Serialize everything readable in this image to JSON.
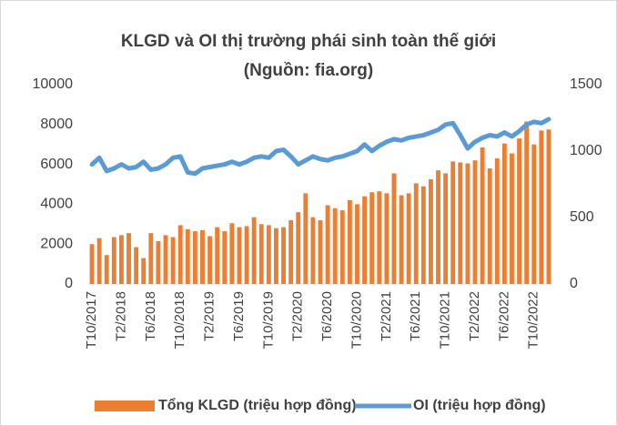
{
  "chart_data": {
    "type": "bar-line",
    "title": "KLGD và OI thị trường phái sinh toàn thế giới",
    "subtitle": "(Nguồn: fia.org)",
    "categories": [
      "T10/2017",
      null,
      null,
      null,
      "T2/2018",
      null,
      null,
      null,
      "T6/2018",
      null,
      null,
      null,
      "T10/2018",
      null,
      null,
      null,
      "T2/2019",
      null,
      null,
      null,
      "T6/2019",
      null,
      null,
      null,
      "T10/2019",
      null,
      null,
      null,
      "T2/2020",
      null,
      null,
      null,
      "T6/2020",
      null,
      null,
      null,
      "T10/2020",
      null,
      null,
      null,
      "T2/2021",
      null,
      null,
      null,
      "T6/2021",
      null,
      null,
      null,
      "T10/2021",
      null,
      null,
      null,
      "T2/2022",
      null,
      null,
      null,
      "T6/2022",
      null,
      null,
      null,
      "T10/2022",
      null,
      null
    ],
    "series": [
      {
        "name": "Tổng KLGD (triệu hợp đồng)",
        "color": "#ed7d31",
        "kind": "bar",
        "values": [
          2000,
          2300,
          1450,
          2350,
          2450,
          2550,
          1850,
          1300,
          2550,
          2150,
          2450,
          2350,
          2950,
          2750,
          2650,
          2700,
          2400,
          2850,
          2650,
          3050,
          2850,
          2900,
          3350,
          3000,
          2950,
          2800,
          2850,
          3200,
          3600,
          4550,
          3350,
          3200,
          3950,
          3800,
          3700,
          4200,
          4000,
          4400,
          4600,
          4650,
          4550,
          5550,
          4450,
          4550,
          5050,
          4900,
          5250,
          5700,
          5550,
          6150,
          6100,
          6050,
          6200,
          6850,
          5800,
          6300,
          7050,
          6550,
          7300,
          8150,
          7000,
          7700,
          7750
        ]
      },
      {
        "name": "OI (triệu hợp đồng)",
        "color": "#5b9bd5",
        "kind": "line",
        "axis": "y2",
        "values": [
          900,
          950,
          850,
          870,
          900,
          870,
          880,
          920,
          860,
          870,
          900,
          950,
          960,
          840,
          830,
          870,
          880,
          890,
          900,
          920,
          900,
          920,
          950,
          960,
          950,
          1000,
          1010,
          960,
          900,
          930,
          960,
          940,
          930,
          950,
          960,
          980,
          1000,
          1050,
          1000,
          1040,
          1070,
          1090,
          1080,
          1100,
          1110,
          1120,
          1140,
          1160,
          1200,
          1210,
          1120,
          1020,
          1070,
          1100,
          1120,
          1110,
          1140,
          1110,
          1150,
          1200,
          1220,
          1210,
          1240
        ]
      }
    ],
    "ylim": [
      0,
      10000
    ],
    "yticks": [
      0,
      2000,
      4000,
      6000,
      8000,
      10000
    ],
    "y2lim": [
      0,
      1500
    ],
    "y2ticks": [
      0,
      500,
      1000,
      1500
    ],
    "grid": false,
    "legend": "bottom"
  }
}
